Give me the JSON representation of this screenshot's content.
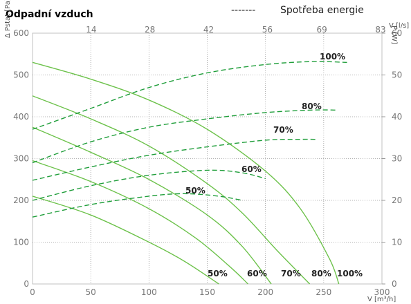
{
  "chart_data": {
    "type": "line",
    "title": "Odpadní vzduch",
    "legend": {
      "dashed_label": "Spotřeba energie",
      "dashes": "-------"
    },
    "axes": {
      "x": {
        "label": "V [m³/h]",
        "ticks": [
          "0",
          "50",
          "100",
          "150",
          "200",
          "250",
          "300"
        ],
        "range": [
          0,
          300
        ]
      },
      "x2": {
        "label": "V [l/s]",
        "ticks": [
          "14",
          "28",
          "42",
          "56",
          "69",
          "83"
        ]
      },
      "y_left": {
        "label": "Δ Pstat [Pa]",
        "ticks": [
          "0",
          "100",
          "200",
          "300",
          "400",
          "500",
          "600"
        ],
        "range": [
          0,
          600
        ]
      },
      "y_right": {
        "label": "P [W]",
        "ticks": [
          "0",
          "10",
          "20",
          "30",
          "40",
          "50",
          "60"
        ],
        "range": [
          0,
          60
        ]
      }
    },
    "grid": true,
    "colors": {
      "curve": "#6dc24b",
      "dashed": "#1f9e3a",
      "grid": "#9a9a9a",
      "axis": "#b8b8b8"
    },
    "pressure_series": [
      {
        "name": "100%",
        "points": [
          [
            0,
            530
          ],
          [
            50,
            490
          ],
          [
            100,
            440
          ],
          [
            150,
            370
          ],
          [
            200,
            270
          ],
          [
            230,
            180
          ],
          [
            255,
            60
          ],
          [
            263,
            0
          ]
        ]
      },
      {
        "name": "80%",
        "points": [
          [
            0,
            450
          ],
          [
            50,
            395
          ],
          [
            100,
            330
          ],
          [
            150,
            240
          ],
          [
            180,
            170
          ],
          [
            210,
            80
          ],
          [
            238,
            0
          ]
        ]
      },
      {
        "name": "70%",
        "points": [
          [
            0,
            375
          ],
          [
            50,
            315
          ],
          [
            100,
            250
          ],
          [
            150,
            165
          ],
          [
            180,
            90
          ],
          [
            205,
            0
          ]
        ]
      },
      {
        "name": "60%",
        "points": [
          [
            0,
            295
          ],
          [
            50,
            245
          ],
          [
            100,
            180
          ],
          [
            140,
            110
          ],
          [
            170,
            40
          ],
          [
            185,
            0
          ]
        ]
      },
      {
        "name": "50%",
        "points": [
          [
            0,
            210
          ],
          [
            50,
            165
          ],
          [
            100,
            100
          ],
          [
            130,
            55
          ],
          [
            160,
            0
          ]
        ]
      }
    ],
    "power_series": [
      {
        "name": "100%",
        "points": [
          [
            0,
            37
          ],
          [
            50,
            42
          ],
          [
            100,
            47
          ],
          [
            150,
            50.5
          ],
          [
            200,
            52.5
          ],
          [
            240,
            53.2
          ],
          [
            270,
            53
          ]
        ]
      },
      {
        "name": "80%",
        "points": [
          [
            0,
            29
          ],
          [
            50,
            34
          ],
          [
            100,
            37.5
          ],
          [
            150,
            39.5
          ],
          [
            200,
            41
          ],
          [
            240,
            41.6
          ],
          [
            260,
            41.6
          ]
        ]
      },
      {
        "name": "70%",
        "points": [
          [
            0,
            24.8
          ],
          [
            50,
            28
          ],
          [
            100,
            30.8
          ],
          [
            150,
            32.8
          ],
          [
            200,
            34.4
          ],
          [
            230,
            34.6
          ],
          [
            245,
            34.6
          ]
        ]
      },
      {
        "name": "60%",
        "points": [
          [
            0,
            20
          ],
          [
            50,
            23.5
          ],
          [
            100,
            26
          ],
          [
            150,
            27.2
          ],
          [
            180,
            26.6
          ],
          [
            200,
            25.2
          ]
        ]
      },
      {
        "name": "50%",
        "points": [
          [
            0,
            16
          ],
          [
            50,
            19
          ],
          [
            100,
            21
          ],
          [
            130,
            21.6
          ],
          [
            160,
            21
          ],
          [
            180,
            20
          ]
        ]
      }
    ],
    "pressure_labels": [
      "50%",
      "60%",
      "70%",
      "80%",
      "100%"
    ],
    "power_labels": [
      "100%",
      "80%",
      "70%",
      "60%",
      "50%"
    ]
  }
}
